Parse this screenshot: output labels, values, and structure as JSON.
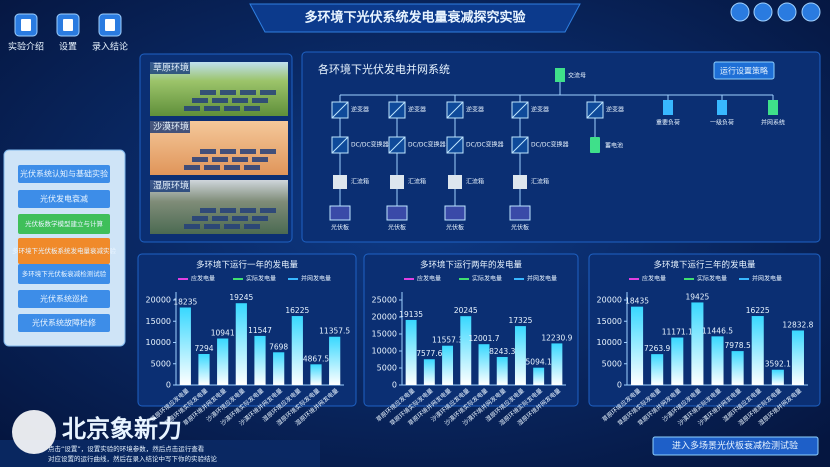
{
  "header": {
    "title": "多环境下光伏系统发电量衰减探究实验"
  },
  "toolbar": [
    "实验介绍",
    "设置",
    "录入结论"
  ],
  "environments": [
    "草原环境",
    "沙漠环境",
    "湿原环境"
  ],
  "menu": [
    "光伏系统认知与基础实验",
    "光伏发电衰减",
    "光伏板数学模型建立与计算",
    "多环境下光伏板系统发电量衰减实验",
    "多环境下光伏板衰减检测试验",
    "光伏系统巡检",
    "光伏系统故障检修"
  ],
  "diagram": {
    "title": "各环境下光伏发电并网系统",
    "button": "运行设置策略",
    "bus": "交流母",
    "inverters": [
      "逆变器",
      "逆变器",
      "逆变器",
      "逆变器",
      "逆变器"
    ],
    "converters": [
      "DC/DC变换器",
      "DC/DC变换器",
      "DC/DC变换器",
      "DC/DC变换器"
    ],
    "combiners": [
      "汇流箱",
      "汇流箱",
      "汇流箱",
      "汇流箱"
    ],
    "panels": [
      "光伏板",
      "光伏板",
      "光伏板",
      "光伏板"
    ],
    "battery": "蓄电池",
    "loads": [
      "重要负荷",
      "一级负荷",
      "并网系统"
    ]
  },
  "chart_data": [
    {
      "type": "bar",
      "title": "多环境下运行一年的发电量",
      "color": "#38d8ff",
      "legend": [
        {
          "name": "应发电量",
          "color": "#e040e0"
        },
        {
          "name": "实际发电量",
          "color": "#40e070"
        },
        {
          "name": "并网发电量",
          "color": "#38b8ff"
        }
      ],
      "categories": [
        "草原环境应发电量",
        "草原环境实际发电量",
        "草原环境并网发电量",
        "沙漠环境应发电量",
        "沙漠环境实际发电量",
        "沙漠环境并网发电量",
        "湿原环境应发电量",
        "湿原环境实际发电量",
        "湿原环境并网发电量"
      ],
      "values": [
        18235,
        7294,
        10941,
        19245,
        11547,
        7698,
        16225,
        4867.5,
        11357.5
      ],
      "ylim": [
        0,
        20000
      ],
      "yticks": [
        0,
        5000,
        10000,
        15000,
        20000
      ]
    },
    {
      "type": "bar",
      "title": "多环境下运行两年的发电量",
      "color": "#38d8ff",
      "legend": [
        {
          "name": "应发电量",
          "color": "#e040e0"
        },
        {
          "name": "实际发电量",
          "color": "#40e070"
        },
        {
          "name": "并网发电量",
          "color": "#38b8ff"
        }
      ],
      "categories": [
        "草原环境应发电量",
        "草原环境实际发电量",
        "草原环境并网发电量",
        "沙漠环境应发电量",
        "沙漠环境实际发电量",
        "沙漠环境并网发电量",
        "湿原环境应发电量",
        "湿原环境实际发电量",
        "湿原环境并网发电量"
      ],
      "values": [
        19135,
        7577.6,
        11557.3,
        20245,
        12001.7,
        8243.3,
        17325,
        5094.1,
        12230.9
      ],
      "ylim": [
        0,
        25000
      ],
      "yticks": [
        0,
        5000,
        10000,
        15000,
        20000,
        25000
      ]
    },
    {
      "type": "bar",
      "title": "多环境下运行三年的发电量",
      "color": "#38d8ff",
      "legend": [
        {
          "name": "应发电量",
          "color": "#e040e0"
        },
        {
          "name": "实际发电量",
          "color": "#40e070"
        },
        {
          "name": "并网发电量",
          "color": "#38b8ff"
        }
      ],
      "categories": [
        "草原环境应发电量",
        "草原环境实际发电量",
        "草原环境并网发电量",
        "沙漠环境应发电量",
        "沙漠环境实际发电量",
        "沙漠环境并网发电量",
        "湿原环境应发电量",
        "湿原环境实际发电量",
        "湿原环境并网发电量"
      ],
      "values": [
        18435,
        7263.9,
        11171.1,
        19425,
        11446.5,
        7978.5,
        16225,
        3592.1,
        12832.8
      ],
      "ylim": [
        0,
        20000
      ],
      "yticks": [
        0,
        5000,
        10000,
        15000,
        20000
      ]
    }
  ],
  "footer": {
    "logo": "北京象新力",
    "tips": [
      "点击“设置”，设置实验的环境参数，然后点击运行查看",
      "对应设置的运行曲线，然后在录入结论中写下你的实验结论"
    ],
    "button": "进入多场景光伏板衰减检测试验"
  }
}
